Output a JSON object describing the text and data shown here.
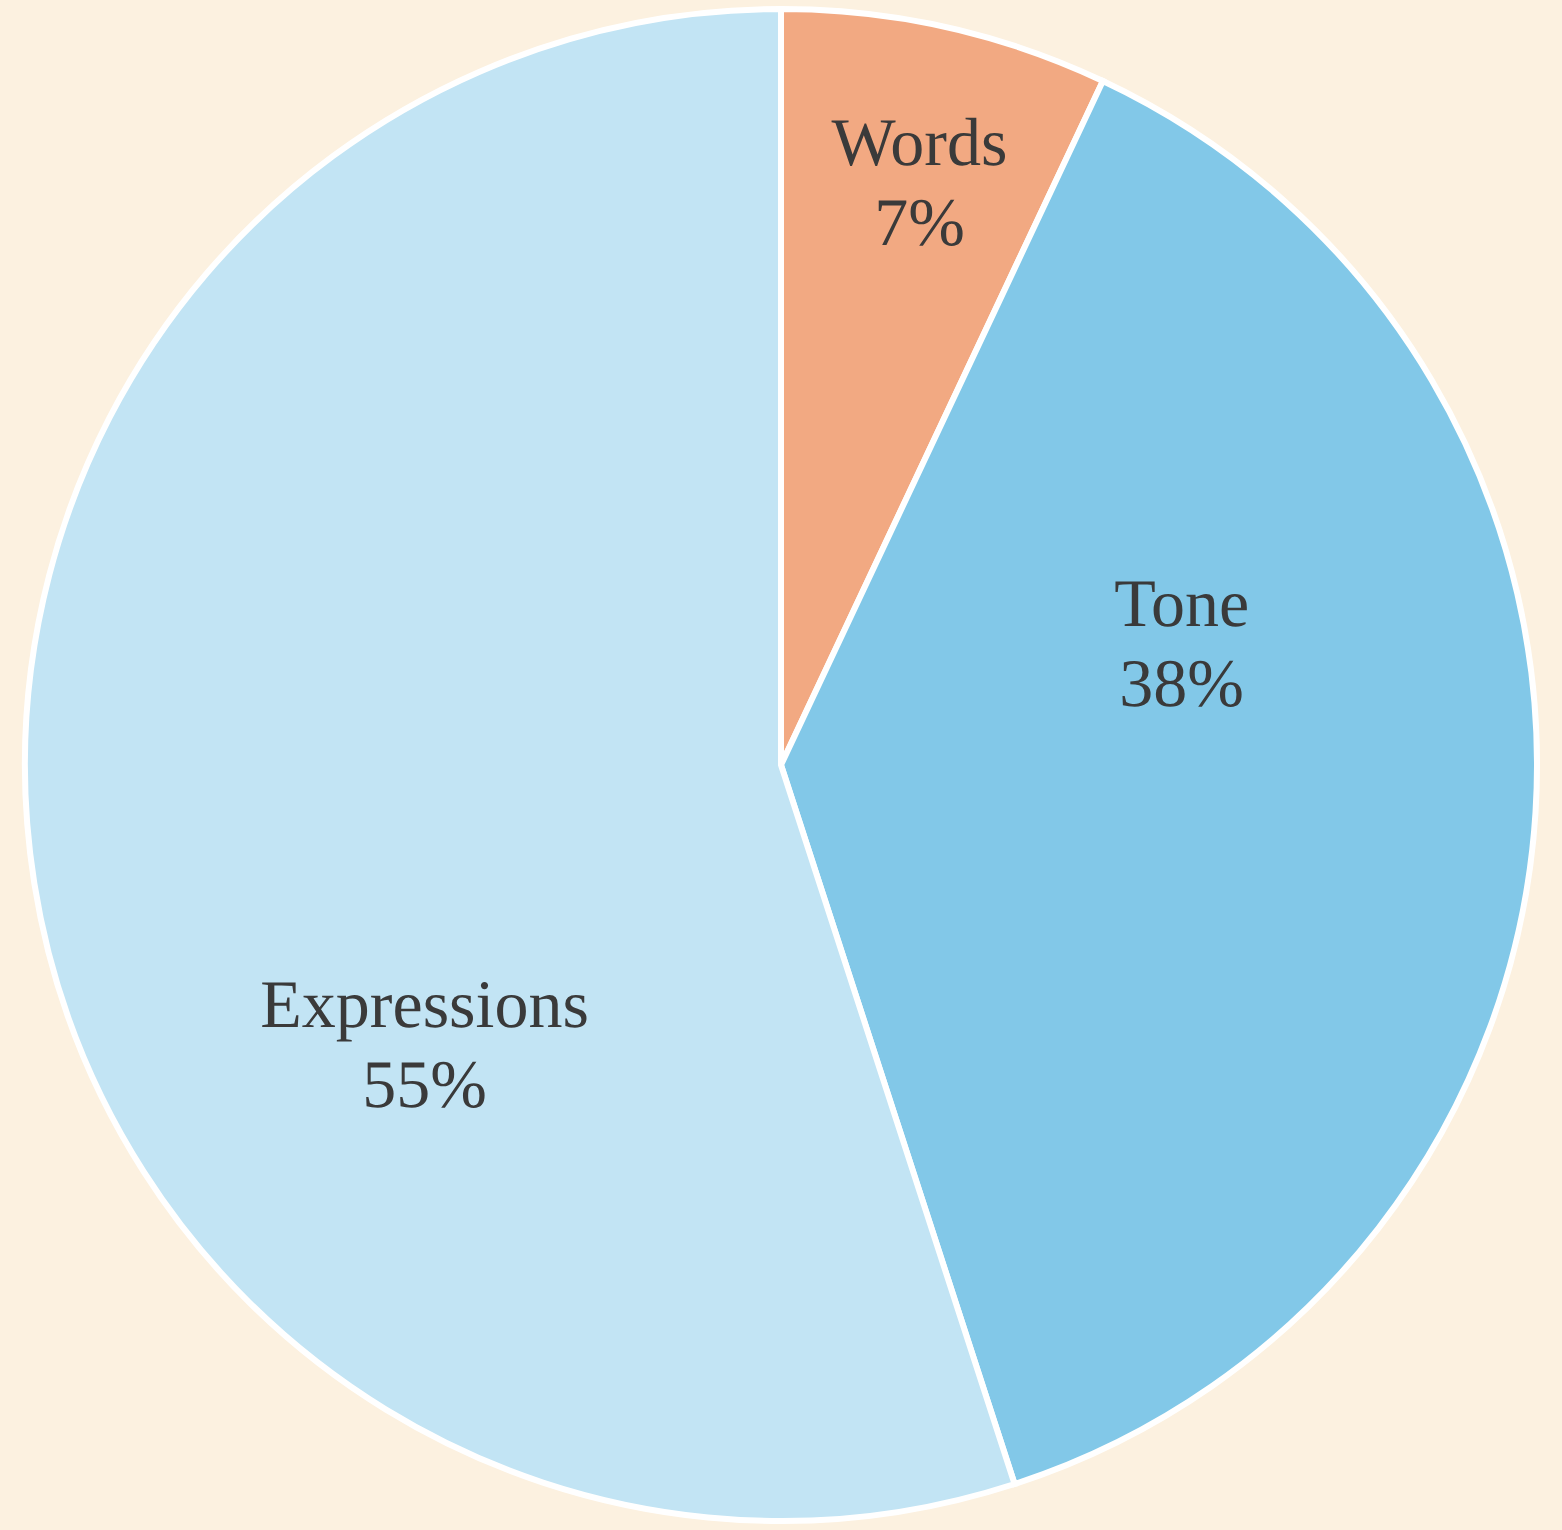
{
  "chart_data": {
    "type": "pie",
    "categories": [
      "Words",
      "Tone",
      "Expressions"
    ],
    "values": [
      7,
      38,
      55
    ],
    "colors": [
      "#f2a982",
      "#82c8e8",
      "#c2e4f4"
    ],
    "value_labels": [
      "7%",
      "38%",
      "55%"
    ]
  }
}
